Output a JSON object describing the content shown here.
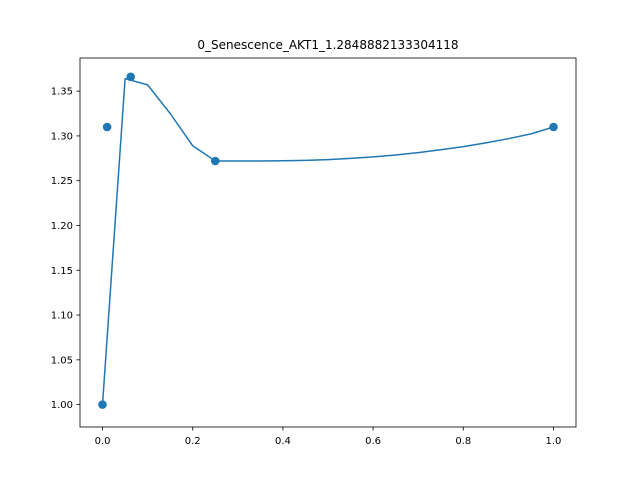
{
  "chart_data": {
    "type": "line",
    "title": "0_Senescence_AKT1_1.2848882133304118",
    "xlabel": "",
    "ylabel": "",
    "xlim": [
      -0.05,
      1.05
    ],
    "ylim": [
      0.975,
      1.387
    ],
    "grid": false,
    "x_ticks": [
      0.0,
      0.2,
      0.4,
      0.6,
      0.8,
      1.0
    ],
    "x_tick_labels": [
      "0.0",
      "0.2",
      "0.4",
      "0.6",
      "0.8",
      "1.0"
    ],
    "y_ticks": [
      1.0,
      1.05,
      1.1,
      1.15,
      1.2,
      1.25,
      1.3,
      1.35
    ],
    "y_tick_labels": [
      "1.00",
      "1.05",
      "1.10",
      "1.15",
      "1.20",
      "1.25",
      "1.30",
      "1.35"
    ],
    "series": [
      {
        "kind": "line",
        "color": "#1f77b4",
        "x": [
          0.0,
          0.05,
          0.1,
          0.15,
          0.2,
          0.25,
          0.3,
          0.35,
          0.4,
          0.45,
          0.5,
          0.55,
          0.6,
          0.65,
          0.7,
          0.75,
          0.8,
          0.85,
          0.9,
          0.95,
          1.0
        ],
        "y": [
          1.0,
          1.364,
          1.357,
          1.325,
          1.289,
          1.272,
          1.272,
          1.272,
          1.2722,
          1.2727,
          1.2736,
          1.2749,
          1.2766,
          1.2787,
          1.2814,
          1.2845,
          1.2881,
          1.2922,
          1.2969,
          1.3023,
          1.31
        ]
      },
      {
        "kind": "scatter",
        "color": "#1f77b4",
        "x": [
          0.0,
          0.01,
          0.0625,
          0.25,
          1.0
        ],
        "y": [
          1.0,
          1.31,
          1.366,
          1.272,
          1.31
        ]
      }
    ]
  }
}
